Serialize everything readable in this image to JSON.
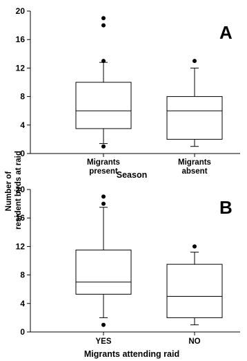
{
  "y_axis_label": [
    "Number of",
    "resident birds at raid"
  ],
  "chart_data": [
    {
      "type": "box",
      "panel_label": "A",
      "xlabel": "Season",
      "ylim": [
        0,
        20
      ],
      "yticks": [
        0,
        4,
        8,
        12,
        16,
        20
      ],
      "categories": [
        [
          "Migrants",
          "present"
        ],
        [
          "Migrants",
          "absent"
        ]
      ],
      "boxes": [
        {
          "q1": 3.5,
          "median": 6,
          "q3": 10,
          "whisker_low": 1.4,
          "whisker_high": 12.8,
          "outliers": [
            1,
            13,
            18,
            19
          ]
        },
        {
          "q1": 2,
          "median": 6,
          "q3": 8,
          "whisker_low": 1,
          "whisker_high": 12,
          "outliers": [
            13
          ]
        }
      ]
    },
    {
      "type": "box",
      "panel_label": "B",
      "xlabel": "Migrants attending raid",
      "ylim": [
        0,
        20
      ],
      "yticks": [
        0,
        4,
        8,
        12,
        16,
        20
      ],
      "categories": [
        [
          "YES"
        ],
        [
          "NO"
        ]
      ],
      "boxes": [
        {
          "q1": 5.3,
          "median": 7,
          "q3": 11.5,
          "whisker_low": 2,
          "whisker_high": 17.5,
          "outliers": [
            1,
            18,
            19
          ]
        },
        {
          "q1": 2,
          "median": 5,
          "q3": 9.5,
          "whisker_low": 1,
          "whisker_high": 11.2,
          "outliers": [
            12
          ]
        }
      ]
    }
  ]
}
